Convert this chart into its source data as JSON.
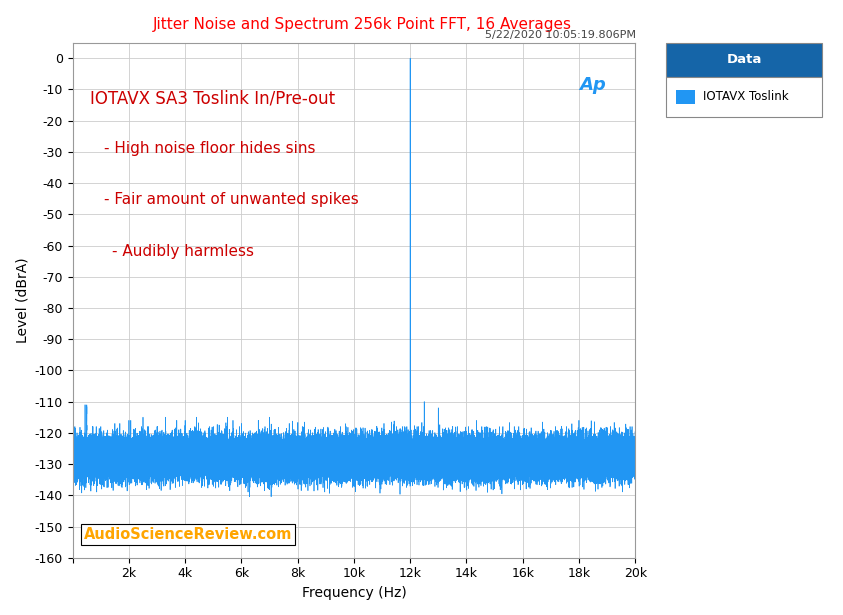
{
  "title": "Jitter Noise and Spectrum 256k Point FFT, 16 Averages",
  "timestamp": "5/22/2020 10:05:19.806PM",
  "xlabel": "Frequency (Hz)",
  "ylabel": "Level (dBrA)",
  "xlim": [
    0,
    20000
  ],
  "ylim": [
    -160,
    5
  ],
  "yticks": [
    0,
    -10,
    -20,
    -30,
    -40,
    -50,
    -60,
    -70,
    -80,
    -90,
    -100,
    -110,
    -120,
    -130,
    -140,
    -150,
    -160
  ],
  "xticks": [
    0,
    2000,
    4000,
    6000,
    8000,
    10000,
    12000,
    14000,
    16000,
    18000,
    20000
  ],
  "xticklabels": [
    "",
    "2k",
    "4k",
    "6k",
    "8k",
    "10k",
    "12k",
    "14k",
    "16k",
    "18k",
    "20k"
  ],
  "title_color": "#FF0000",
  "line_color": "#2196F3",
  "noise_floor_mean": -128,
  "noise_floor_std": 3.0,
  "annotation_lines": [
    "IOTAVX SA3 Toslink In/Pre-out",
    "- High noise floor hides sins",
    "- Fair amount of unwanted spikes",
    "- Audibly harmless"
  ],
  "annotation_color": "#CC0000",
  "watermark": "AudioScienceReview.com",
  "watermark_color": "#FFA500",
  "legend_title": "Data",
  "legend_label": "IOTAVX Toslink",
  "legend_title_bg": "#1565A8",
  "background_color": "#FFFFFF",
  "plot_bg": "#FFFFFF",
  "grid_color": "#CCCCCC",
  "main_peak_freq": 12000,
  "main_peak_level": 0,
  "named_spikes": [
    [
      440,
      -111
    ],
    [
      500,
      -113
    ],
    [
      700,
      -118
    ],
    [
      1000,
      -118
    ],
    [
      1200,
      -120
    ],
    [
      1500,
      -117
    ],
    [
      2000,
      -116
    ],
    [
      2200,
      -119
    ],
    [
      2500,
      -115
    ],
    [
      3000,
      -118
    ],
    [
      3300,
      -115
    ],
    [
      3700,
      -116
    ],
    [
      4000,
      -116
    ],
    [
      4400,
      -115
    ],
    [
      5000,
      -118
    ],
    [
      5500,
      -115
    ],
    [
      6000,
      -117
    ],
    [
      6600,
      -116
    ],
    [
      7000,
      -115
    ],
    [
      7700,
      -117
    ],
    [
      11000,
      -120
    ],
    [
      11500,
      -122
    ],
    [
      12000,
      0
    ],
    [
      12500,
      -110
    ],
    [
      13000,
      -112
    ],
    [
      13500,
      -118
    ],
    [
      14500,
      -120
    ],
    [
      18000,
      -116
    ],
    [
      19500,
      -121
    ]
  ]
}
